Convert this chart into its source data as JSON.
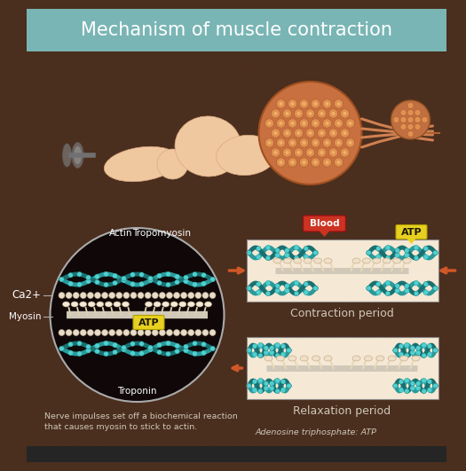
{
  "title": "Mechanism of muscle contraction",
  "title_bg": "#7ab5b5",
  "title_color": "#ffffff",
  "main_bg": "#4a2e1e",
  "bottom_bar_color": "#252525",
  "label_actin": "Actin",
  "label_tropomyosin": "Tropomyosin",
  "label_ca2": "Ca2+",
  "label_atp_circle": "ATP",
  "label_myosin": "Myosin",
  "label_troponin": "Troponin",
  "label_blood": "Blood",
  "label_atp_contraction": "ATP",
  "label_contraction_period": "Contraction period",
  "label_relaxation_period": "Relaxation period",
  "label_adenosine": "Adenosine triphosphate: ATP",
  "label_nerve_1": "Nerve impulses set off a biochemical reaction",
  "label_nerve_2": "that causes myosin to stick to actin.",
  "teal_color": "#2a9a9a",
  "teal_light": "#40c8c8",
  "teal_dark": "#1a7070",
  "teal_bead": "#50d0d0",
  "orange_arrow": "#d05828",
  "yellow_atp": "#e8d020",
  "red_blood": "#cc3322",
  "arm_skin": "#f0c8a0",
  "arm_shadow": "#d8a880",
  "muscle_orange": "#c87040",
  "white": "#ffffff",
  "cream": "#f5e8d5",
  "cream2": "#e8d8b8",
  "myosin_color": "#d0c8b8",
  "gray_dumbbell": "#909090",
  "light_text": "#d0c8b8",
  "circle_border": "#aaaaaa",
  "circle_bg": "#100808"
}
